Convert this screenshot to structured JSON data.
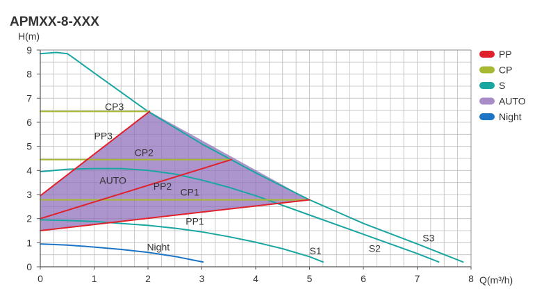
{
  "chart_data": {
    "type": "line",
    "title": "APMXX-8-XXX",
    "ylabel": "H(m)",
    "xlabel": "Q(m³/h)",
    "xlim": [
      0,
      8
    ],
    "ylim": [
      0,
      9
    ],
    "x_ticks": [
      "0",
      "1",
      "2",
      "3",
      "4",
      "5",
      "6",
      "7",
      "8"
    ],
    "y_ticks": [
      "0",
      "1",
      "2",
      "3",
      "4",
      "5",
      "6",
      "7",
      "8",
      "9"
    ],
    "grid": true,
    "minor_grid_step_x": 0.25,
    "minor_grid_step_y": 0.5,
    "legend_position": "right",
    "legend": [
      {
        "name": "PP",
        "color": "#e0202a"
      },
      {
        "name": "CP",
        "color": "#a8b830"
      },
      {
        "name": "S",
        "color": "#1aa6a0"
      },
      {
        "name": "AUTO",
        "color": "#a88cc8"
      },
      {
        "name": "Night",
        "color": "#1b74c4"
      }
    ],
    "auto_region": {
      "label": "AUTO",
      "color": "#8c6cb8",
      "points": [
        [
          0,
          2.95
        ],
        [
          2.03,
          6.45
        ],
        [
          5.0,
          2.78
        ],
        [
          0,
          1.5
        ]
      ]
    },
    "series": [
      {
        "label": "S3",
        "category": "S",
        "color": "#1aa6a0",
        "points": [
          [
            0,
            8.85
          ],
          [
            0.3,
            8.9
          ],
          [
            0.5,
            8.85
          ],
          [
            0.6,
            8.7
          ],
          [
            1.0,
            8.05
          ],
          [
            2.0,
            6.45
          ],
          [
            3.0,
            5.1
          ],
          [
            4.0,
            3.9
          ],
          [
            5.0,
            2.78
          ],
          [
            6.0,
            1.8
          ],
          [
            7.0,
            0.95
          ],
          [
            7.85,
            0.2
          ]
        ]
      },
      {
        "label": "S2",
        "category": "S",
        "color": "#1aa6a0",
        "points": [
          [
            0,
            3.95
          ],
          [
            0.5,
            4.05
          ],
          [
            1.0,
            4.08
          ],
          [
            1.5,
            4.08
          ],
          [
            2.0,
            4.0
          ],
          [
            2.5,
            3.85
          ],
          [
            3.0,
            3.6
          ],
          [
            3.5,
            3.3
          ],
          [
            4.0,
            2.95
          ],
          [
            4.5,
            2.55
          ],
          [
            5.0,
            2.15
          ],
          [
            6.0,
            1.35
          ],
          [
            7.0,
            0.55
          ],
          [
            7.4,
            0.2
          ]
        ]
      },
      {
        "label": "S1",
        "category": "S",
        "color": "#1aa6a0",
        "points": [
          [
            0,
            1.95
          ],
          [
            0.5,
            1.92
          ],
          [
            1.0,
            1.88
          ],
          [
            1.5,
            1.8
          ],
          [
            2.0,
            1.72
          ],
          [
            2.5,
            1.6
          ],
          [
            3.0,
            1.45
          ],
          [
            3.5,
            1.25
          ],
          [
            4.0,
            1.02
          ],
          [
            4.5,
            0.75
          ],
          [
            5.0,
            0.42
          ],
          [
            5.25,
            0.2
          ]
        ]
      },
      {
        "label": "CP3",
        "category": "CP",
        "color": "#a8b830",
        "points": [
          [
            0,
            6.45
          ],
          [
            2.03,
            6.45
          ]
        ]
      },
      {
        "label": "CP2",
        "category": "CP",
        "color": "#a8b830",
        "points": [
          [
            0,
            4.45
          ],
          [
            3.55,
            4.45
          ]
        ]
      },
      {
        "label": "CP1",
        "category": "CP",
        "color": "#a8b830",
        "points": [
          [
            0,
            2.78
          ],
          [
            5.0,
            2.78
          ]
        ]
      },
      {
        "label": "PP3",
        "category": "PP",
        "color": "#e0202a",
        "points": [
          [
            0,
            2.95
          ],
          [
            2.03,
            6.45
          ]
        ]
      },
      {
        "label": "PP2",
        "category": "PP",
        "color": "#e0202a",
        "points": [
          [
            0,
            2.0
          ],
          [
            3.55,
            4.45
          ]
        ]
      },
      {
        "label": "PP1",
        "category": "PP",
        "color": "#e0202a",
        "points": [
          [
            0,
            1.5
          ],
          [
            5.0,
            2.78
          ]
        ]
      },
      {
        "label": "Night",
        "category": "Night",
        "color": "#1b74c4",
        "points": [
          [
            0,
            0.95
          ],
          [
            0.5,
            0.9
          ],
          [
            1.0,
            0.82
          ],
          [
            1.5,
            0.72
          ],
          [
            2.0,
            0.6
          ],
          [
            2.5,
            0.43
          ],
          [
            3.02,
            0.2
          ]
        ]
      }
    ],
    "annotations": [
      {
        "text": "CP3",
        "x": 1.2,
        "y": 6.5
      },
      {
        "text": "PP3",
        "x": 1.0,
        "y": 5.3
      },
      {
        "text": "CP2",
        "x": 1.75,
        "y": 4.6
      },
      {
        "text": "AUTO",
        "x": 1.1,
        "y": 3.45
      },
      {
        "text": "PP2",
        "x": 2.1,
        "y": 3.2
      },
      {
        "text": "CP1",
        "x": 2.6,
        "y": 2.95
      },
      {
        "text": "PP1",
        "x": 2.7,
        "y": 1.75
      },
      {
        "text": "Night",
        "x": 1.98,
        "y": 0.68
      },
      {
        "text": "S1",
        "x": 5.0,
        "y": 0.52
      },
      {
        "text": "S2",
        "x": 6.1,
        "y": 0.62
      },
      {
        "text": "S3",
        "x": 7.1,
        "y": 1.05
      }
    ]
  }
}
